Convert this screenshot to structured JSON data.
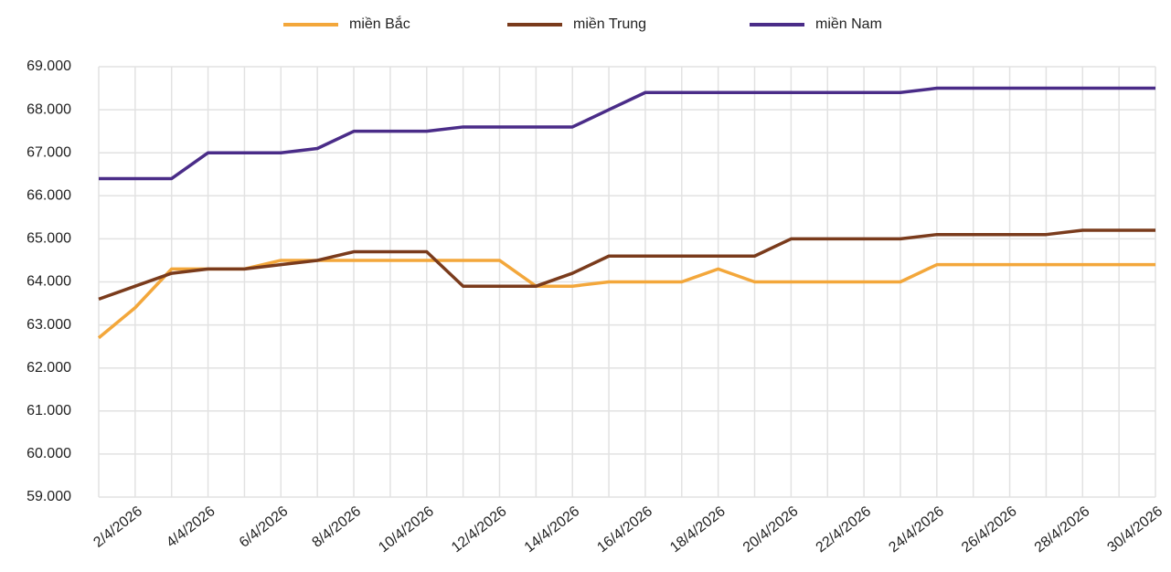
{
  "chart_data": {
    "type": "line",
    "categories": [
      null,
      "2/4/2026",
      null,
      "4/4/2026",
      null,
      "6/4/2026",
      null,
      "8/4/2026",
      null,
      "10/4/2026",
      null,
      "12/4/2026",
      null,
      "14/4/2026",
      null,
      "16/4/2026",
      null,
      "18/4/2026",
      null,
      "20/4/2026",
      null,
      "22/4/2026",
      null,
      "24/4/2026",
      null,
      "26/4/2026",
      null,
      "28/4/2026",
      null,
      "30/4/2026"
    ],
    "series": [
      {
        "name": "miền Bắc",
        "color": "#f3a73b",
        "values": [
          62700,
          63400,
          64300,
          64300,
          64300,
          64500,
          64500,
          64500,
          64500,
          64500,
          64500,
          64500,
          63900,
          63900,
          64000,
          64000,
          64000,
          64300,
          64000,
          64000,
          64000,
          64000,
          64000,
          64400,
          64400,
          64400,
          64400,
          64400,
          64400,
          64400
        ]
      },
      {
        "name": "miền Trung",
        "color": "#7a3b1c",
        "values": [
          63600,
          63900,
          64200,
          64300,
          64300,
          64400,
          64500,
          64700,
          64700,
          64700,
          63900,
          63900,
          63900,
          64200,
          64600,
          64600,
          64600,
          64600,
          64600,
          65000,
          65000,
          65000,
          65000,
          65100,
          65100,
          65100,
          65100,
          65200,
          65200,
          65200
        ]
      },
      {
        "name": "miền Nam",
        "color": "#4a2c88",
        "values": [
          66400,
          66400,
          66400,
          67000,
          67000,
          67000,
          67100,
          67500,
          67500,
          67500,
          67600,
          67600,
          67600,
          67600,
          68000,
          68400,
          68400,
          68400,
          68400,
          68400,
          68400,
          68400,
          68400,
          68500,
          68500,
          68500,
          68500,
          68500,
          68500,
          68500
        ]
      }
    ],
    "ylim": [
      59000,
      69000
    ],
    "yticks": [
      {
        "value": 59000,
        "label": "59.000"
      },
      {
        "value": 60000,
        "label": "60.000"
      },
      {
        "value": 61000,
        "label": "61.000"
      },
      {
        "value": 62000,
        "label": "62.000"
      },
      {
        "value": 63000,
        "label": "63.000"
      },
      {
        "value": 64000,
        "label": "64.000"
      },
      {
        "value": 65000,
        "label": "65.000"
      },
      {
        "value": 66000,
        "label": "66.000"
      },
      {
        "value": 67000,
        "label": "67.000"
      },
      {
        "value": 68000,
        "label": "68.000"
      },
      {
        "value": 69000,
        "label": "69.000"
      }
    ],
    "grid": true,
    "legend": "top"
  }
}
